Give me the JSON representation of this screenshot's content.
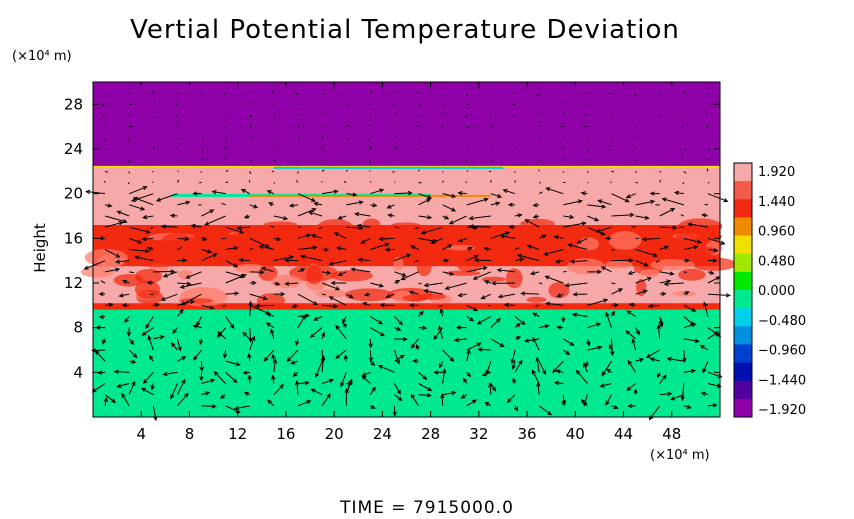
{
  "chart_data": {
    "type": "heatmap",
    "title": "Vertial Potential Temperature Deviation",
    "ylabel": "Height",
    "x_unit_label": "(×10⁴ m)",
    "y_unit_label": "(×10⁴ m)",
    "xlim": [
      0,
      52
    ],
    "ylim": [
      0,
      30
    ],
    "x_ticks": [
      "4",
      "8",
      "12",
      "16",
      "20",
      "24",
      "28",
      "32",
      "36",
      "40",
      "44",
      "48"
    ],
    "y_ticks": [
      "4",
      "8",
      "12",
      "16",
      "20",
      "24",
      "28"
    ],
    "colorbar": {
      "range": [
        -1.92,
        1.92
      ],
      "tick_labels": [
        "1.920",
        "1.440",
        "0.960",
        "0.480",
        "0.000",
        "−0.480",
        "−0.960",
        "−1.440",
        "−1.920"
      ],
      "colors": [
        "#f7a8a8",
        "#f45a4a",
        "#f22a10",
        "#f08a00",
        "#f0e000",
        "#a0e800",
        "#00e800",
        "#00e890",
        "#00d0e8",
        "#0090e0",
        "#0040d0",
        "#0010b0",
        "#5000a0",
        "#9000a8"
      ]
    },
    "bands": [
      {
        "y_from": 0,
        "y_to": 9.6,
        "value": 0.0
      },
      {
        "y_from": 9.6,
        "y_to": 10.2,
        "value": 1.3
      },
      {
        "y_from": 10.2,
        "y_to": 13.5,
        "value": 1.92
      },
      {
        "y_from": 13.5,
        "y_to": 17.2,
        "value": 1.44
      },
      {
        "y_from": 17.2,
        "y_to": 22.4,
        "value": 1.92
      },
      {
        "y_from": 22.4,
        "y_to": 30,
        "value": -1.92
      }
    ],
    "vector_field": "wind vectors overlaid on grid (x step 2, y step 1)"
  },
  "footer": {
    "time_label": "TIME  =  7915000.0"
  }
}
